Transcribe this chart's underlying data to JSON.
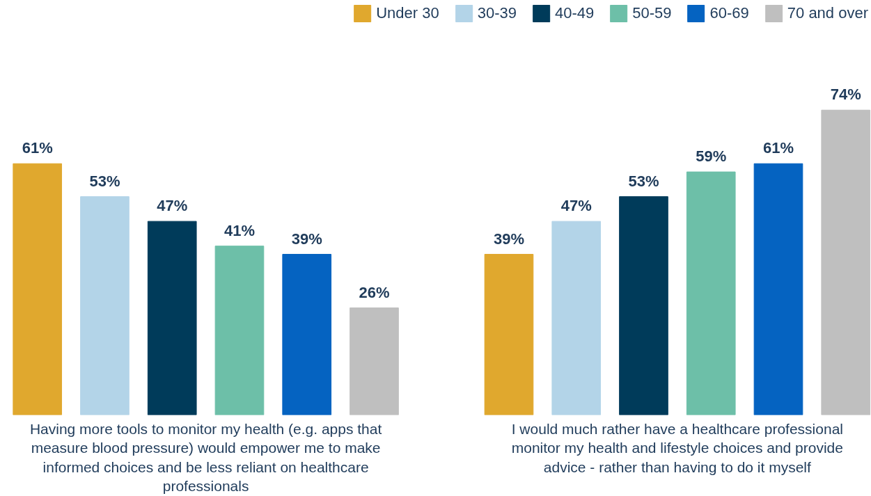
{
  "chart_data": {
    "type": "bar",
    "categories": [
      "Having more tools to monitor my health (e.g. apps that measure blood pressure) would empower me to make informed choices and be less reliant on healthcare professionals",
      "I would much rather have a healthcare professional monitor my health and lifestyle choices and provide advice - rather than having to do it myself"
    ],
    "series": [
      {
        "name": "Under 30",
        "color": "#e0a82e",
        "values": [
          61,
          39
        ],
        "value_labels": [
          "61%",
          "39%"
        ]
      },
      {
        "name": "30-39",
        "color": "#b3d4e8",
        "values": [
          53,
          47
        ],
        "value_labels": [
          "53%",
          "47%"
        ]
      },
      {
        "name": "40-49",
        "color": "#003b5a",
        "values": [
          47,
          53
        ],
        "value_labels": [
          "47%",
          "53%"
        ]
      },
      {
        "name": "50-59",
        "color": "#6dbfa8",
        "values": [
          41,
          59
        ],
        "value_labels": [
          "41%",
          "59%"
        ]
      },
      {
        "name": "60-69",
        "color": "#0563c1",
        "values": [
          39,
          61
        ],
        "value_labels": [
          "39%",
          "61%"
        ]
      },
      {
        "name": "70 and over",
        "color": "#bfbfbf",
        "values": [
          26,
          74
        ],
        "value_labels": [
          "26%",
          "74%"
        ]
      }
    ],
    "legend": "top right",
    "grid": false
  }
}
